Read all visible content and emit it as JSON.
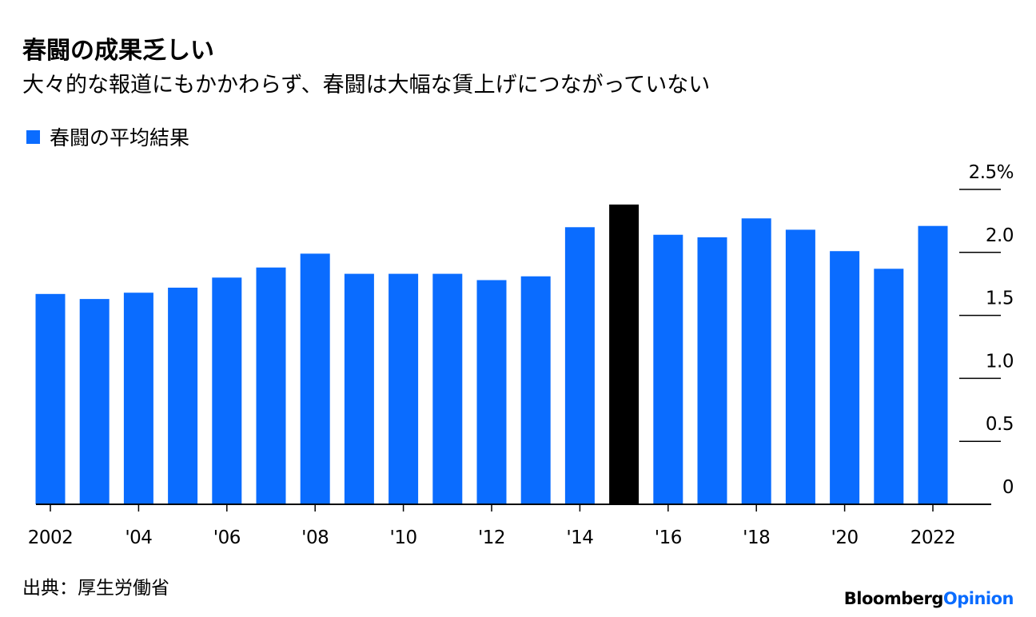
{
  "chart_data": {
    "type": "bar",
    "title": "春闘の成果乏しい",
    "subtitle": "大々的な報道にもかかわらず、春闘は大幅な賃上げにつながっていない",
    "categories": [
      "2002",
      null,
      "'04",
      null,
      "'06",
      null,
      "'08",
      null,
      "'10",
      null,
      "'12",
      null,
      "'14",
      null,
      "'16",
      null,
      "'18",
      null,
      "'20",
      null,
      "2022"
    ],
    "series": [
      {
        "name": "春闘の平均結果",
        "color": "#0a6cff",
        "values": [
          1.67,
          1.63,
          1.68,
          1.72,
          1.8,
          1.88,
          1.99,
          1.83,
          1.83,
          1.83,
          1.78,
          1.81,
          2.2,
          2.38,
          2.14,
          2.12,
          2.27,
          2.18,
          2.01,
          1.87,
          2.21
        ],
        "colors": [
          "#0a6cff",
          "#0a6cff",
          "#0a6cff",
          "#0a6cff",
          "#0a6cff",
          "#0a6cff",
          "#0a6cff",
          "#0a6cff",
          "#0a6cff",
          "#0a6cff",
          "#0a6cff",
          "#0a6cff",
          "#0a6cff",
          "#000000",
          "#0a6cff",
          "#0a6cff",
          "#0a6cff",
          "#0a6cff",
          "#0a6cff",
          "#0a6cff",
          "#0a6cff"
        ]
      }
    ],
    "ylim": [
      0,
      2.5
    ],
    "yticks": [
      0,
      {
        "value": 0.5,
        "label": "0.5"
      },
      {
        "value": 1,
        "label": "1.0"
      },
      {
        "value": 1.5,
        "label": "1.5"
      },
      {
        "value": 2,
        "label": "2.0"
      },
      {
        "value": 2.5,
        "label": "2.5%"
      }
    ],
    "source": "出典：厚生労働省",
    "logo": [
      "Bloomberg",
      "Opinion"
    ]
  }
}
